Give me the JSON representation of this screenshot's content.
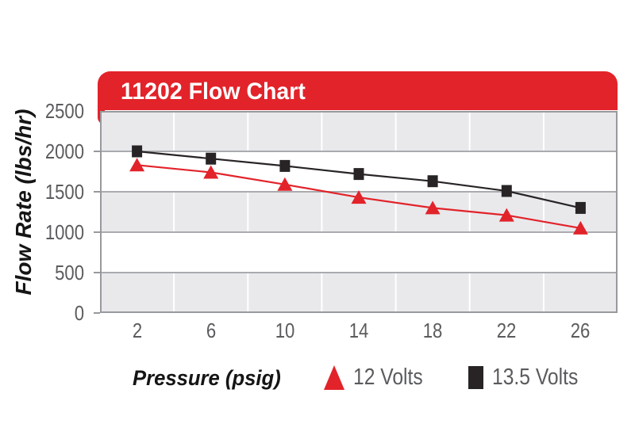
{
  "banner": {
    "title": "11202 Flow Chart"
  },
  "colors": {
    "accent_red": "#e2232a",
    "series_black": "#282426",
    "band_gray": "#e9e9ec",
    "gridline": "#a9abae",
    "plot_border": "#97999c",
    "tick_text": "#5a5b5e",
    "title_text": "#ffffff",
    "axis_title_text": "#151515",
    "vertical_gridline": "#ffffff"
  },
  "chart_data": {
    "type": "line",
    "title": "11202 Flow Chart",
    "xlabel": "Pressure (psig)",
    "ylabel": "Flow Rate (lbs/hr)",
    "categories": [
      2,
      6,
      10,
      14,
      18,
      22,
      26
    ],
    "series": [
      {
        "name": "12 Volts",
        "marker": "triangle",
        "color": "#e2232a",
        "values": [
          1830,
          1740,
          1590,
          1430,
          1300,
          1210,
          1050
        ]
      },
      {
        "name": "13.5 Volts",
        "marker": "square",
        "color": "#282426",
        "values": [
          2000,
          1910,
          1820,
          1720,
          1630,
          1510,
          1300
        ]
      }
    ],
    "ylim": [
      0,
      2500
    ],
    "yticks": [
      0,
      500,
      1000,
      1500,
      2000,
      2500
    ],
    "grid": "horizontal gridlines every 500; alternating gray/white bands; white vertical gridlines between categories",
    "legend_position": "bottom"
  }
}
